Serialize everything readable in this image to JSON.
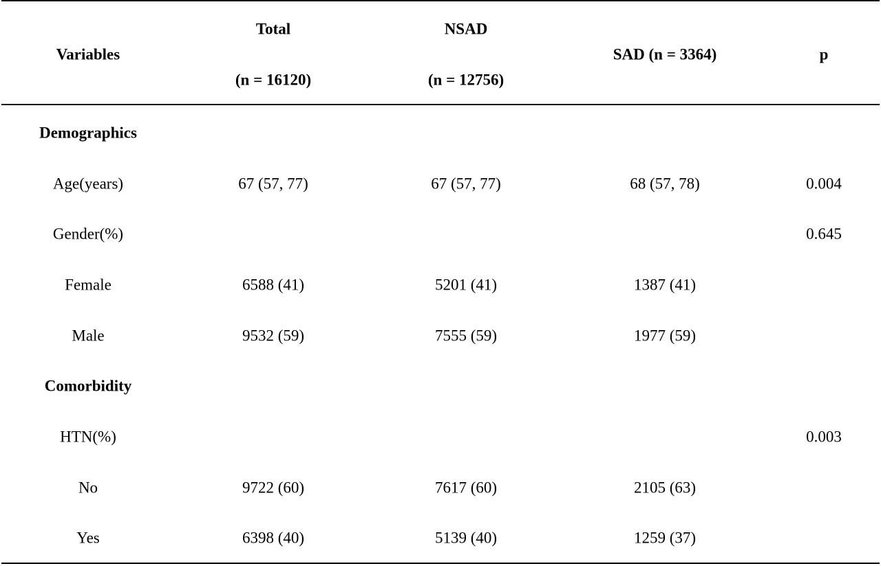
{
  "table": {
    "header": {
      "variables": "Variables",
      "total_line1": "Total",
      "total_line2": "(n = 16120)",
      "nsad_line1": "NSAD",
      "nsad_line2": "(n = 12756)",
      "sad": "SAD (n = 3364)",
      "p": "p"
    },
    "rows": [
      {
        "label": "Demographics",
        "total": "",
        "nsad": "",
        "sad": "",
        "p": ""
      },
      {
        "label": "Age(years)",
        "total": "67 (57, 77)",
        "nsad": "67 (57, 77)",
        "sad": "68 (57, 78)",
        "p": "0.004"
      },
      {
        "label": "Gender(%)",
        "total": "",
        "nsad": "",
        "sad": "",
        "p": "0.645"
      },
      {
        "label": "Female",
        "total": "6588 (41)",
        "nsad": "5201 (41)",
        "sad": "1387 (41)",
        "p": ""
      },
      {
        "label": "Male",
        "total": "9532 (59)",
        "nsad": "7555 (59)",
        "sad": "1977 (59)",
        "p": ""
      },
      {
        "label": "Comorbidity",
        "total": "",
        "nsad": "",
        "sad": "",
        "p": ""
      },
      {
        "label": "HTN(%)",
        "total": "",
        "nsad": "",
        "sad": "",
        "p": "0.003"
      },
      {
        "label": "No",
        "total": "9722 (60)",
        "nsad": "7617 (60)",
        "sad": "2105 (63)",
        "p": ""
      },
      {
        "label": "Yes",
        "total": "6398 (40)",
        "nsad": "5139 (40)",
        "sad": "1259 (37)",
        "p": ""
      }
    ]
  }
}
